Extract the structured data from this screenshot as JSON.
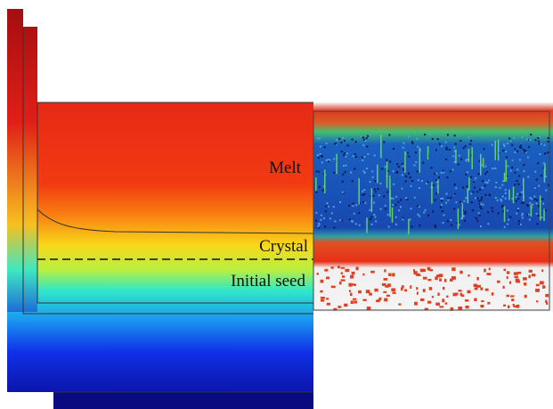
{
  "labels": {
    "melt": "Melt",
    "crystal": "Crystal",
    "initial_seed": "Initial seed"
  }
}
